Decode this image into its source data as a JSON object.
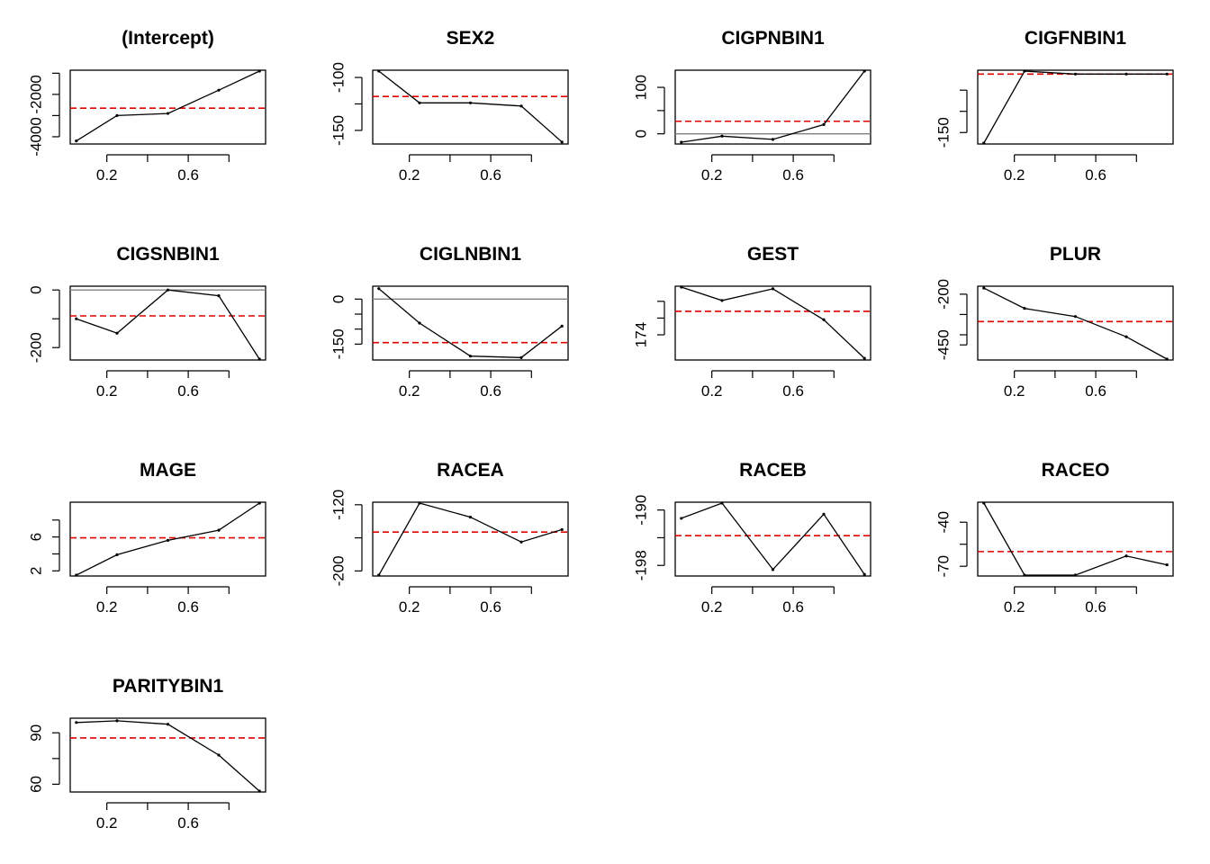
{
  "chart_data": [
    {
      "type": "line",
      "title": "(Intercept)",
      "x": [
        0.05,
        0.25,
        0.5,
        0.75,
        0.95
      ],
      "y": [
        -4200,
        -3000,
        -2900,
        -1800,
        -900
      ],
      "mean": -2650,
      "ylim": [
        -4300,
        -900
      ],
      "yticks": [
        -4000,
        -3000,
        -2000,
        -1000
      ],
      "ytick_labels": [
        "-4000",
        "",
        "-2000",
        ""
      ],
      "zero_line": false
    },
    {
      "type": "line",
      "title": "SEX2",
      "x": [
        0.05,
        0.25,
        0.5,
        0.75,
        0.95
      ],
      "y": [
        -94,
        -124,
        -124,
        -127,
        -161
      ],
      "mean": -118,
      "ylim": [
        -162,
        -94
      ],
      "yticks": [
        -100,
        -125,
        -150
      ],
      "ytick_labels": [
        "-100",
        "",
        "-150"
      ],
      "zero_line": false
    },
    {
      "type": "line",
      "title": "CIGPNBIN1",
      "x": [
        0.05,
        0.25,
        0.5,
        0.75,
        0.95
      ],
      "y": [
        -18,
        -5,
        -12,
        20,
        135
      ],
      "mean": 27,
      "ylim": [
        -20,
        135
      ],
      "yticks": [
        0,
        50,
        100
      ],
      "ytick_labels": [
        "0",
        "",
        "100"
      ],
      "zero_line": true
    },
    {
      "type": "line",
      "title": "CIGFNBIN1",
      "x": [
        0.05,
        0.25,
        0.5,
        0.75,
        0.95
      ],
      "y": [
        -175,
        -5,
        -12,
        -12,
        -12
      ],
      "mean": -12,
      "ylim": [
        -175,
        -5
      ],
      "yticks": [
        -150,
        -100,
        -50
      ],
      "ytick_labels": [
        "-150",
        "",
        ""
      ],
      "zero_line": false
    },
    {
      "type": "line",
      "title": "CIGSNBIN1",
      "x": [
        0.05,
        0.25,
        0.5,
        0.75,
        0.95
      ],
      "y": [
        -100,
        -150,
        0,
        -20,
        -240
      ],
      "mean": -90,
      "ylim": [
        -240,
        10
      ],
      "yticks": [
        0,
        -100,
        -200
      ],
      "ytick_labels": [
        "0",
        "",
        "-200"
      ],
      "zero_line": true
    },
    {
      "type": "line",
      "title": "CIGLNBIN1",
      "x": [
        0.05,
        0.25,
        0.5,
        0.75,
        0.95
      ],
      "y": [
        35,
        -80,
        -190,
        -195,
        -90
      ],
      "mean": -145,
      "ylim": [
        -200,
        40
      ],
      "yticks": [
        0,
        -50,
        -100,
        -150
      ],
      "ytick_labels": [
        "0",
        "",
        "",
        "-150"
      ],
      "zero_line": true
    },
    {
      "type": "line",
      "title": "GEST",
      "x": [
        0.05,
        0.25,
        0.5,
        0.75,
        0.95
      ],
      "y": [
        176.85,
        176.05,
        176.75,
        174.9,
        172.6
      ],
      "mean": 175.4,
      "ylim": [
        172.55,
        176.85
      ],
      "yticks": [
        174,
        175,
        176
      ],
      "ytick_labels": [
        "174",
        "",
        ""
      ],
      "zero_line": false
    },
    {
      "type": "line",
      "title": "PLUR",
      "x": [
        0.05,
        0.25,
        0.5,
        0.75,
        0.95
      ],
      "y": [
        -170,
        -270,
        -310,
        -410,
        -520
      ],
      "mean": -335,
      "ylim": [
        -520,
        -165
      ],
      "yticks": [
        -200,
        -300,
        -400,
        -450
      ],
      "ytick_labels": [
        "-200",
        "",
        "",
        "-450"
      ],
      "zero_line": false
    },
    {
      "type": "line",
      "title": "MAGE",
      "x": [
        0.05,
        0.25,
        0.5,
        0.75,
        0.95
      ],
      "y": [
        1.5,
        3.9,
        5.6,
        6.8,
        10.0
      ],
      "mean": 5.9,
      "ylim": [
        1.5,
        10.0
      ],
      "yticks": [
        2,
        4,
        6,
        8
      ],
      "ytick_labels": [
        "2",
        "",
        "6",
        ""
      ],
      "zero_line": false
    },
    {
      "type": "line",
      "title": "RACEA",
      "x": [
        0.05,
        0.25,
        0.5,
        0.75,
        0.95
      ],
      "y": [
        -205,
        -118,
        -135,
        -165,
        -150
      ],
      "mean": -153,
      "ylim": [
        -205,
        -118
      ],
      "yticks": [
        -120,
        -160,
        -200
      ],
      "ytick_labels": [
        "-120",
        "",
        "-200"
      ],
      "zero_line": false
    },
    {
      "type": "line",
      "title": "RACEB",
      "x": [
        0.05,
        0.25,
        0.5,
        0.75,
        0.95
      ],
      "y": [
        -191.2,
        -189.0,
        -198.6,
        -190.6,
        -199.3
      ],
      "mean": -193.7,
      "ylim": [
        -199.4,
        -189.0
      ],
      "yticks": [
        -190,
        -194,
        -198
      ],
      "ytick_labels": [
        "-190",
        "",
        "-198"
      ],
      "zero_line": false
    },
    {
      "type": "line",
      "title": "RACEO",
      "x": [
        0.05,
        0.25,
        0.5,
        0.75,
        0.95
      ],
      "y": [
        -27,
        -76,
        -76,
        -63,
        -69
      ],
      "mean": -60,
      "ylim": [
        -76,
        -27
      ],
      "yticks": [
        -40,
        -55,
        -70
      ],
      "ytick_labels": [
        "-40",
        "",
        "-70"
      ],
      "zero_line": false
    },
    {
      "type": "line",
      "title": "PARITYBIN1",
      "x": [
        0.05,
        0.25,
        0.5,
        0.75,
        0.95
      ],
      "y": [
        96,
        97,
        95,
        77,
        56
      ],
      "mean": 87,
      "ylim": [
        56,
        98
      ],
      "yticks": [
        90,
        75,
        60
      ],
      "ytick_labels": [
        "90",
        "",
        "60"
      ],
      "zero_line": false
    }
  ],
  "x_axis": {
    "ticks": [
      0.2,
      0.6
    ],
    "tick_labels": [
      "0.2",
      "0.6"
    ],
    "minor_ticks": [
      0.4,
      0.8
    ],
    "xlim": [
      0.02,
      0.98
    ]
  },
  "colors": {
    "series": "#000000",
    "mean": "#e00000",
    "zero": "#808080"
  }
}
